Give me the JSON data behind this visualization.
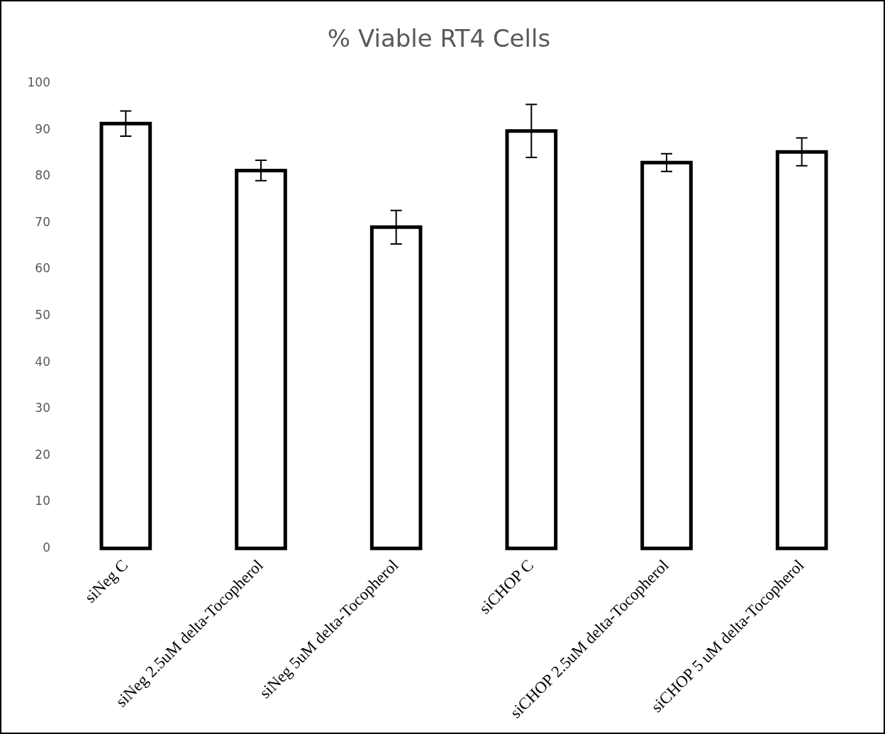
{
  "chart_data": {
    "type": "bar",
    "title": "% Viable RT4 Cells",
    "categories": [
      "siNeg C",
      "siNeg 2.5uM delta-Tocopherol",
      "siNeg 5uM delta-Tocopherol",
      "siCHOP C",
      "siCHOP 2.5uM delta-Tocopherol",
      "siCHOP 5 uM delta-Tocopherol"
    ],
    "values": [
      91.4,
      81.3,
      69.1,
      89.8,
      83.0,
      85.3
    ],
    "errors": [
      2.7,
      2.2,
      3.6,
      5.7,
      1.9,
      3.0
    ],
    "color": "#000000",
    "ylim": [
      0,
      100
    ],
    "yticks": [
      0,
      10,
      20,
      30,
      40,
      50,
      60,
      70,
      80,
      90,
      100
    ],
    "grid": false,
    "legend": false
  }
}
